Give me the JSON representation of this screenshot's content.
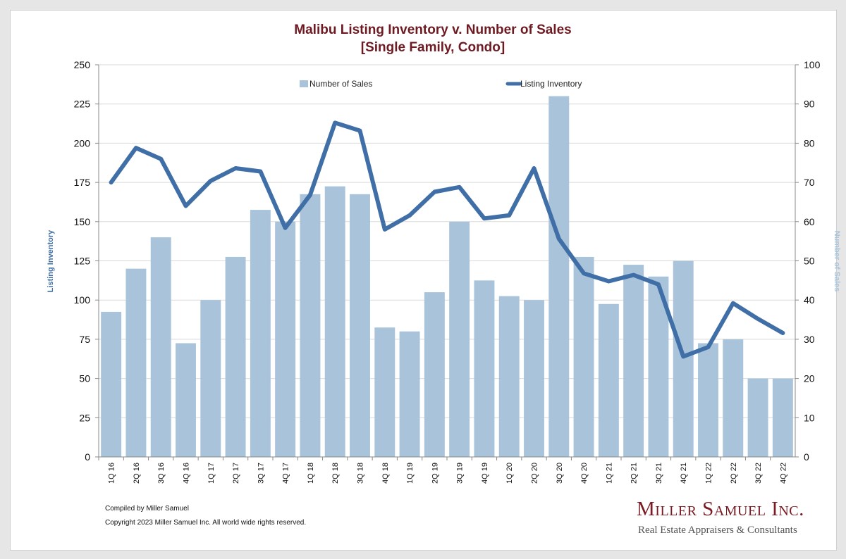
{
  "chart_data": {
    "type": "bar+line",
    "title": "Malibu Listing Inventory v. Number of Sales",
    "subtitle": "[Single Family, Condo]",
    "categories": [
      "1Q 16",
      "2Q 16",
      "3Q 16",
      "4Q 16",
      "1Q 17",
      "2Q 17",
      "3Q 17",
      "4Q 17",
      "1Q 18",
      "2Q 18",
      "3Q 18",
      "4Q 18",
      "1Q 19",
      "2Q 19",
      "3Q 19",
      "4Q 19",
      "1Q 20",
      "2Q 20",
      "3Q 20",
      "4Q 20",
      "1Q 21",
      "2Q 21",
      "3Q 21",
      "4Q 21",
      "1Q 22",
      "2Q 22",
      "3Q 22",
      "4Q 22"
    ],
    "series": [
      {
        "name": "Number of Sales",
        "type": "bar",
        "axis": "right",
        "color": "#a9c4da",
        "values": [
          37,
          48,
          56,
          29,
          40,
          51,
          63,
          60,
          67,
          69,
          67,
          33,
          32,
          42,
          60,
          45,
          41,
          40,
          92,
          51,
          39,
          49,
          46,
          50,
          29,
          30,
          20,
          20
        ]
      },
      {
        "name": "Listing Inventory",
        "type": "line",
        "axis": "left",
        "color": "#3f6fa6",
        "values": [
          175,
          197,
          190,
          160,
          176,
          184,
          182,
          146,
          167,
          213,
          208,
          145,
          154,
          169,
          172,
          152,
          154,
          184,
          139,
          117,
          112,
          116,
          110,
          64,
          70,
          98,
          88,
          79
        ]
      }
    ],
    "y_left": {
      "label": "Listing Inventory",
      "min": 0,
      "max": 250,
      "ticks": [
        "0",
        "25",
        "50",
        "75",
        "100",
        "125",
        "150",
        "175",
        "200",
        "225",
        "250"
      ]
    },
    "y_right": {
      "label": "Number of Sales",
      "min": 0,
      "max": 100,
      "ticks": [
        "0",
        "10",
        "20",
        "30",
        "40",
        "50",
        "60",
        "70",
        "80",
        "90",
        "100"
      ]
    },
    "grid": "horizontal",
    "legend": "top"
  },
  "footer": {
    "compiled": "Compiled by Miller Samuel",
    "copyright": "Copyright 2023 Miller Samuel Inc.  All world wide rights reserved."
  },
  "brand": {
    "name": "Miller Samuel Inc.",
    "tagline": "Real Estate Appraisers & Consultants"
  }
}
